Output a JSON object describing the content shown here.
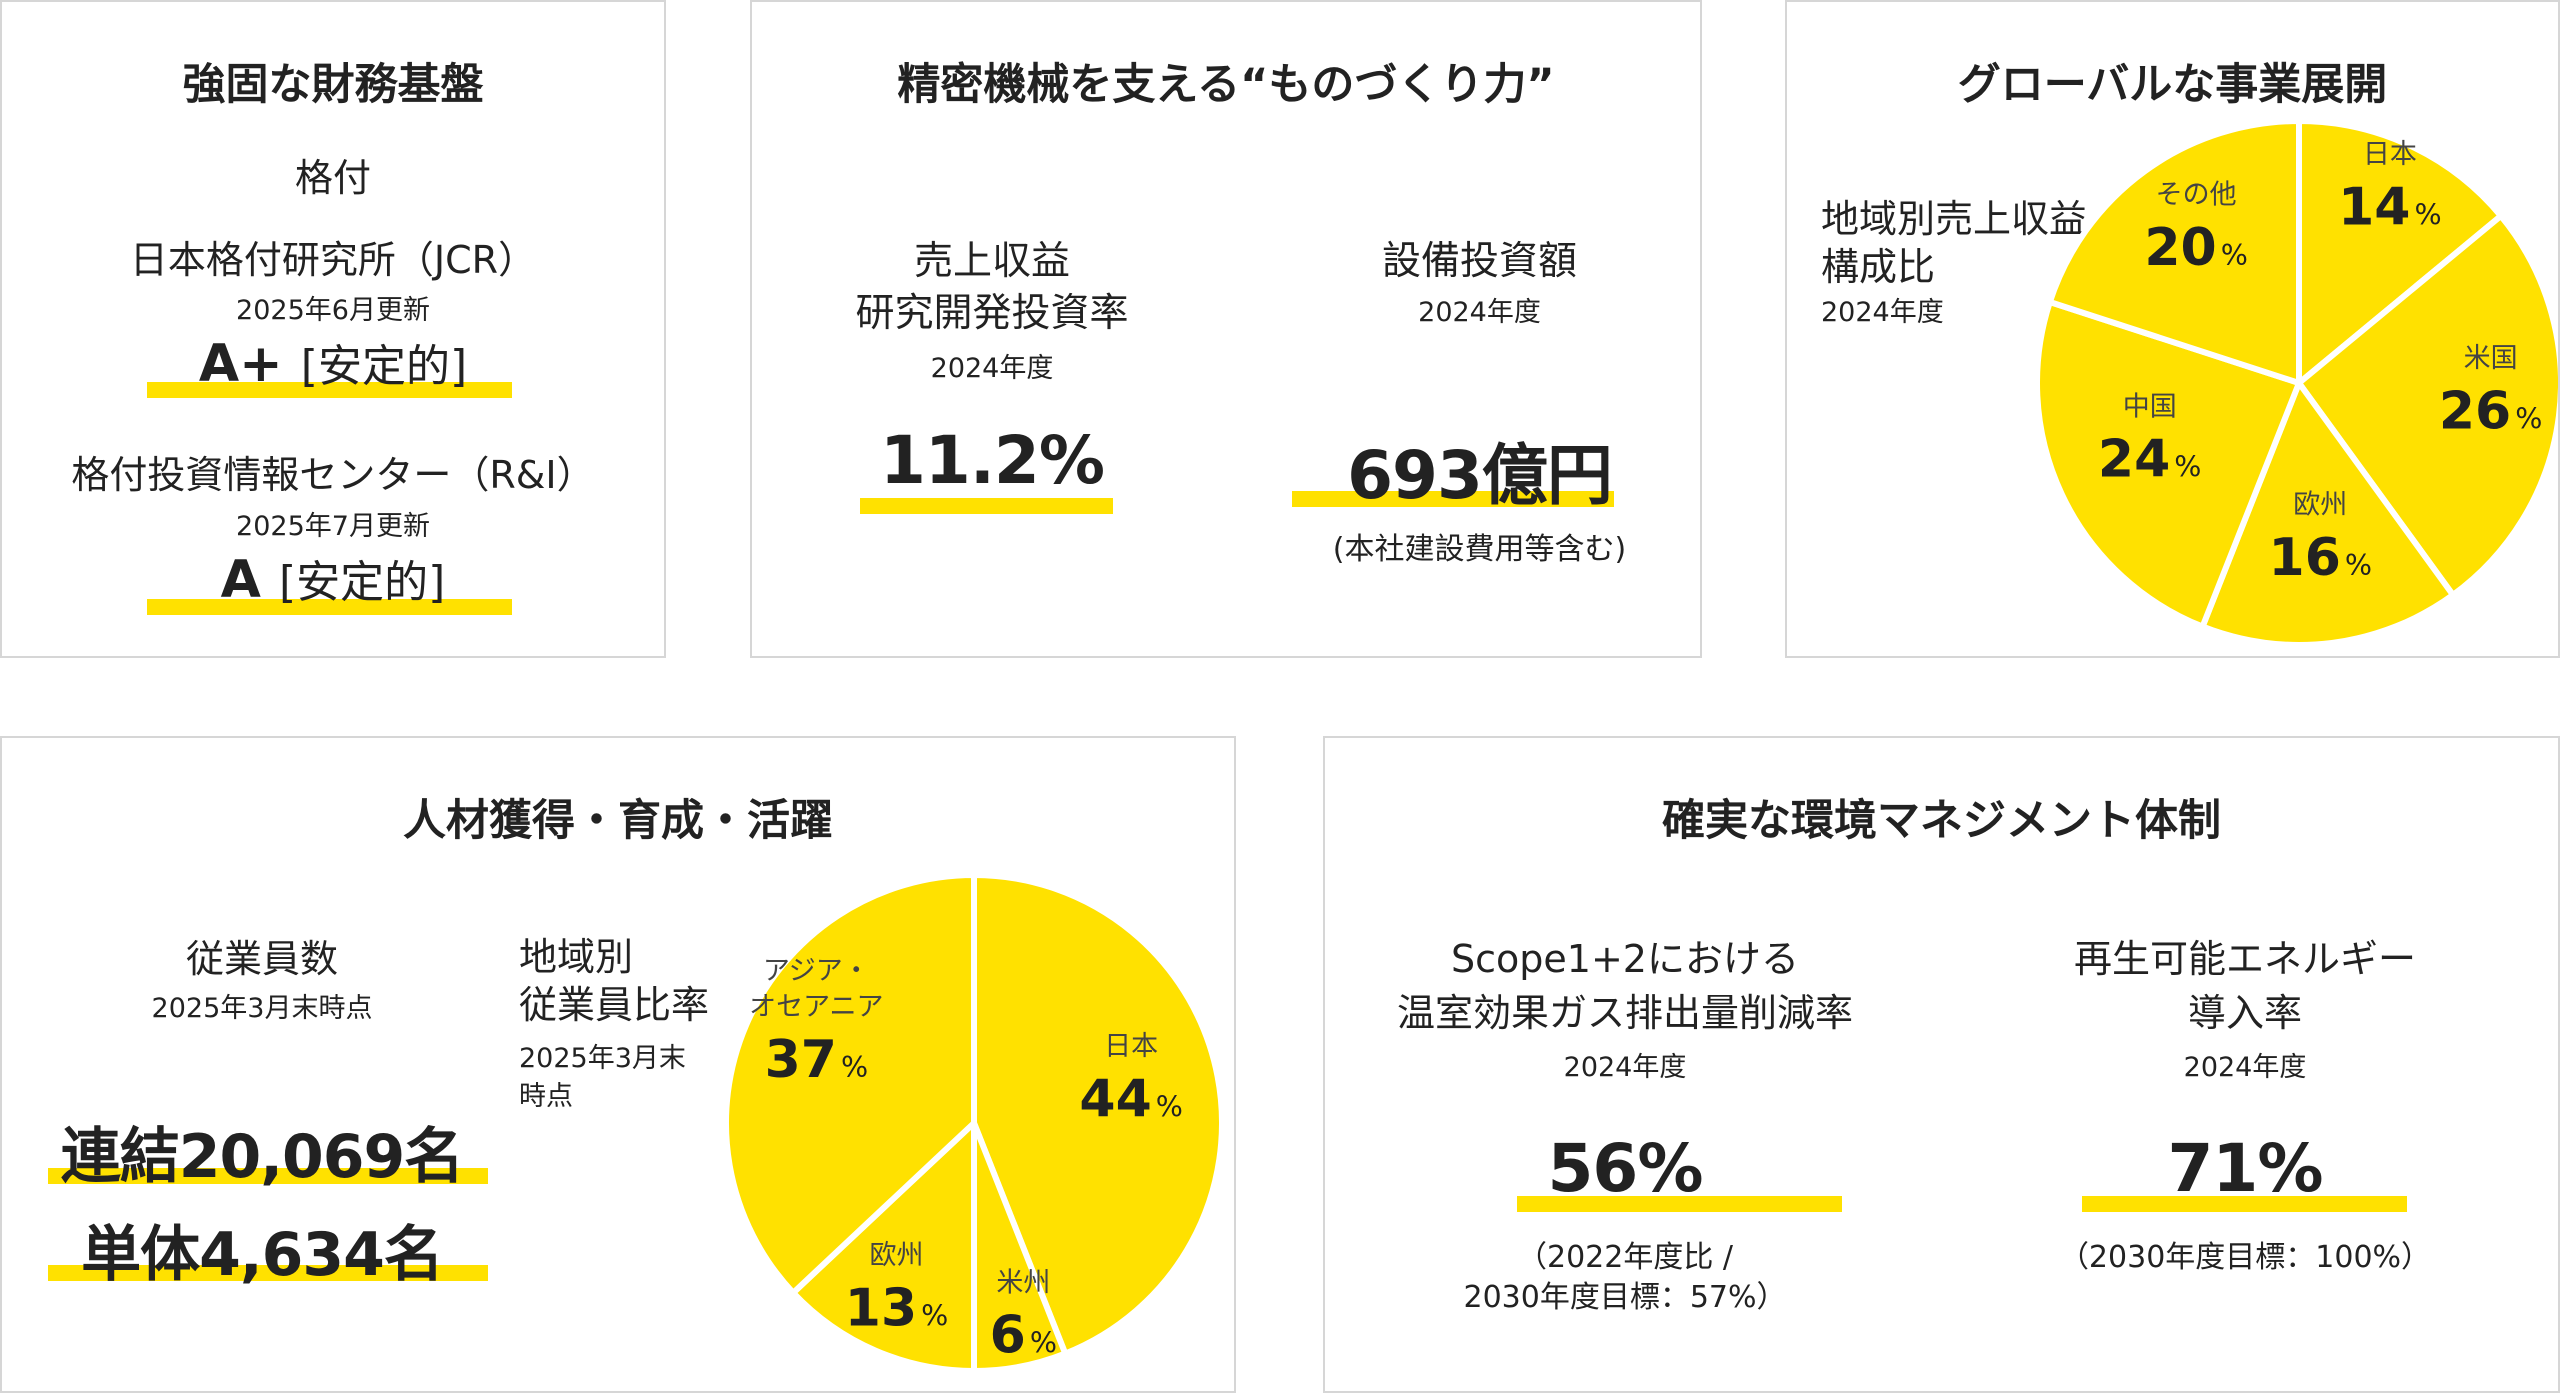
{
  "colors": {
    "accent": "#ffe100",
    "border": "#d6d6d6",
    "text": "#222222",
    "label": "#444444"
  },
  "financial": {
    "title": "強固な財務基盤",
    "rating_label": "格付",
    "jcr": {
      "agency": "日本格付研究所（JCR）",
      "updated": "2025年6月更新",
      "grade": "A+",
      "outlook": "[安定的]"
    },
    "ri": {
      "agency": "格付投資情報センター（R&I）",
      "updated": "2025年7月更新",
      "grade": "A",
      "outlook": "[安定的]"
    }
  },
  "monozukuri": {
    "title": "精密機械を支える“ものづくり力”",
    "rd": {
      "label_line1": "売上収益",
      "label_line2": "研究開発投資率",
      "period": "2024年度",
      "value": "11.2%"
    },
    "capex": {
      "label": "設備投資額",
      "period": "2024年度",
      "value": "693億円",
      "note": "(本社建設費用等含む)"
    }
  },
  "global": {
    "title": "グローバルな事業展開",
    "chart_label_line1": "地域別売上収益",
    "chart_label_line2": "構成比",
    "period": "2024年度",
    "pct_suffix": "%"
  },
  "hr": {
    "title": "人材獲得・育成・活躍",
    "employees": {
      "label": "従業員数",
      "date": "2025年3月末時点",
      "consolidated": "連結20,069名",
      "standalone": "単体4,634名"
    },
    "chart_label_line1": "地域別",
    "chart_label_line2": "従業員比率",
    "chart_date_line1": "2025年3月末",
    "chart_date_line2": "時点",
    "pct_suffix": "%"
  },
  "env": {
    "title": "確実な環境マネジメント体制",
    "ghg": {
      "label_line1": "Scope1+2における",
      "label_line2": "温室効果ガス排出量削減率",
      "period": "2024年度",
      "value": "56%",
      "note_line1": "（2022年度比 /",
      "note_line2": "2030年度目標：57%）"
    },
    "renewable": {
      "label_line1": "再生可能エネルギー",
      "label_line2": "導入率",
      "period": "2024年度",
      "value": "71%",
      "note": "（2030年度目標：100%）"
    }
  },
  "chart_data": [
    {
      "type": "pie",
      "title": "地域別売上収益構成比",
      "categories": [
        "日本",
        "米国",
        "欧州",
        "中国",
        "その他"
      ],
      "values": [
        14,
        26,
        16,
        24,
        20
      ],
      "color": "#ffe100"
    },
    {
      "type": "pie",
      "title": "地域別従業員比率",
      "categories": [
        "日本",
        "米州",
        "欧州",
        "アジア・オセアニア"
      ],
      "values": [
        44,
        6,
        13,
        37
      ],
      "color": "#ffe100"
    }
  ]
}
